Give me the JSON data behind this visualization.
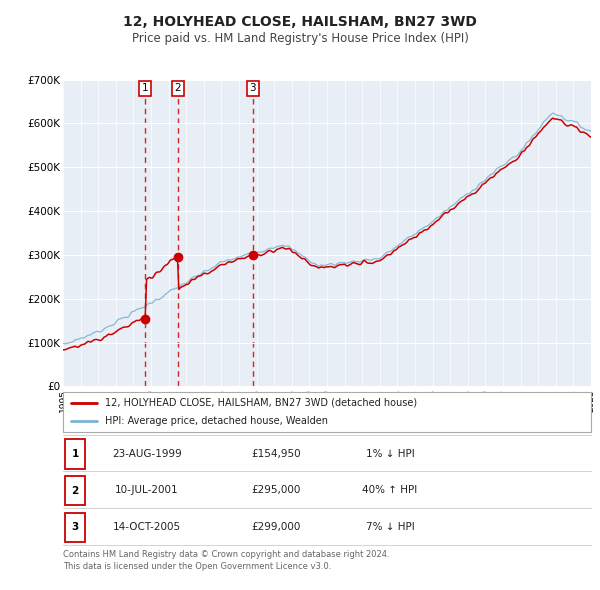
{
  "title": "12, HOLYHEAD CLOSE, HAILSHAM, BN27 3WD",
  "subtitle": "Price paid vs. HM Land Registry's House Price Index (HPI)",
  "legend_label_red": "12, HOLYHEAD CLOSE, HAILSHAM, BN27 3WD (detached house)",
  "legend_label_blue": "HPI: Average price, detached house, Wealden",
  "transactions": [
    {
      "num": 1,
      "date": "23-AUG-1999",
      "price": 154950,
      "pct": "1%",
      "dir": "↓",
      "year": 1999.64
    },
    {
      "num": 2,
      "date": "10-JUL-2001",
      "price": 295000,
      "pct": "40%",
      "dir": "↑",
      "year": 2001.52
    },
    {
      "num": 3,
      "date": "14-OCT-2005",
      "price": 299000,
      "pct": "7%",
      "dir": "↓",
      "year": 2005.79
    }
  ],
  "footnote1": "Contains HM Land Registry data © Crown copyright and database right 2024.",
  "footnote2": "This data is licensed under the Open Government Licence v3.0.",
  "ylim": [
    0,
    700000
  ],
  "yticks": [
    0,
    100000,
    200000,
    300000,
    400000,
    500000,
    600000,
    700000
  ],
  "ytick_labels": [
    "£0",
    "£100K",
    "£200K",
    "£300K",
    "£400K",
    "£500K",
    "£600K",
    "£700K"
  ],
  "background_color": "#e8eef5",
  "plot_bg_color": "#e8eef5",
  "red_color": "#cc0000",
  "blue_color": "#7ab3d4",
  "grid_color": "#ffffff",
  "dashed_color": "#cc0000"
}
